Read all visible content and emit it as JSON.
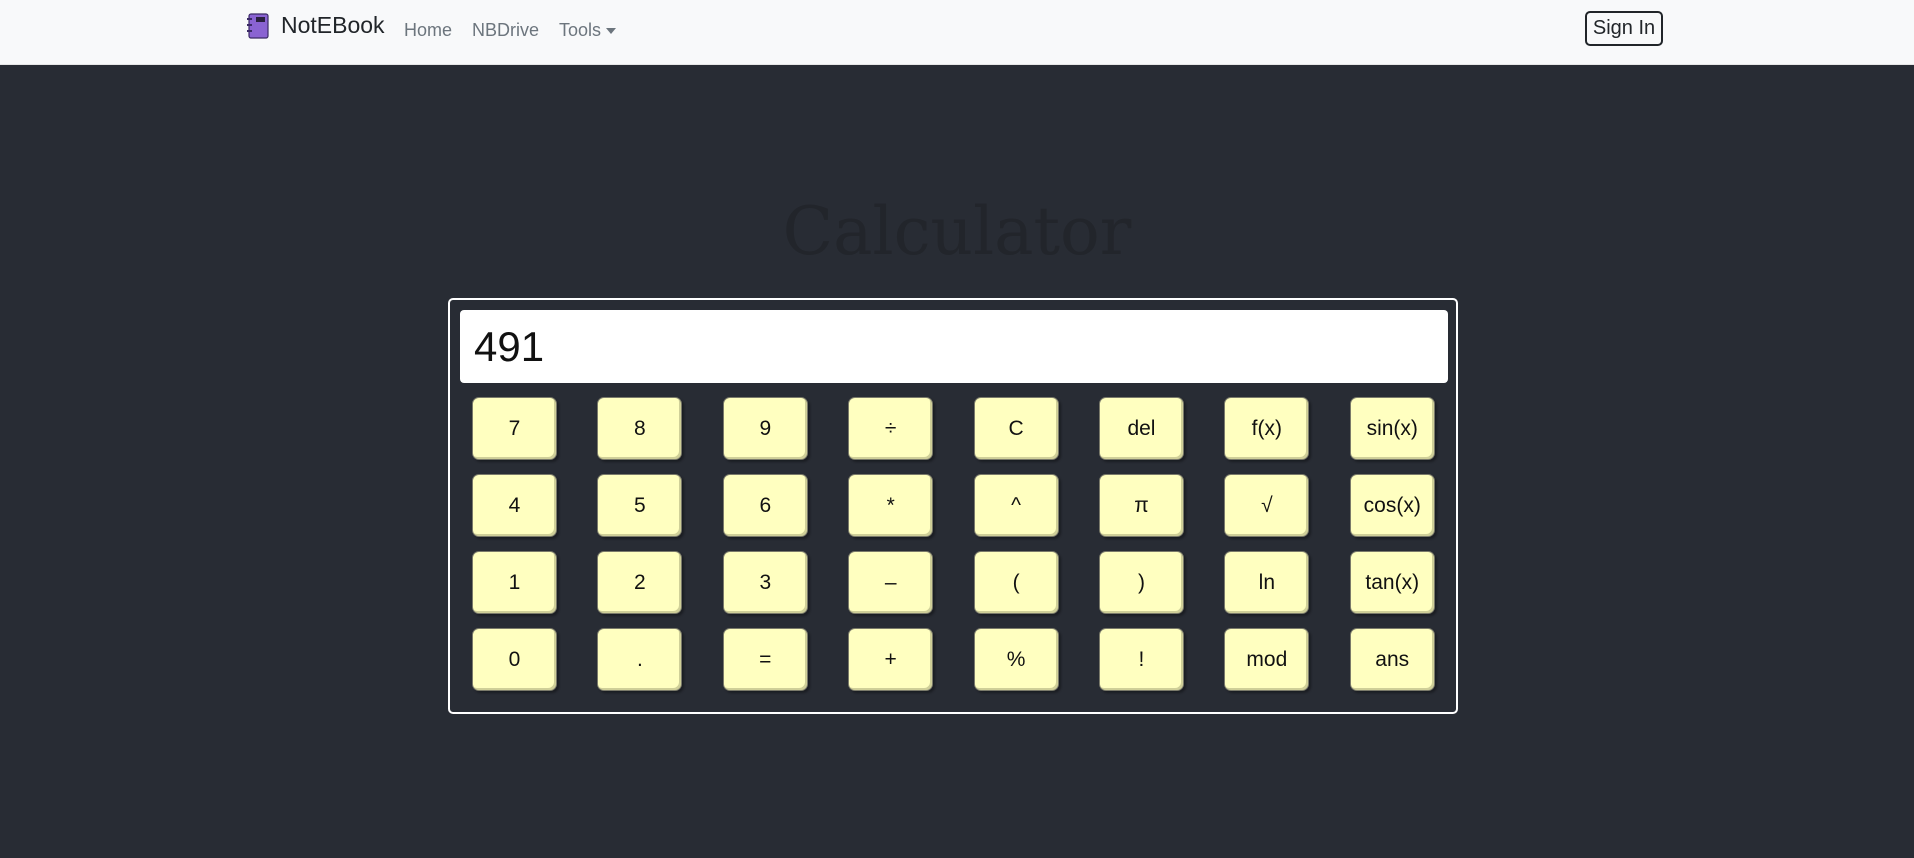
{
  "navbar": {
    "brand": "NotEBook",
    "links": [
      "Home",
      "NBDrive",
      "Tools"
    ],
    "sign_in": "Sign In"
  },
  "page": {
    "title": "Calculator"
  },
  "calculator": {
    "display_value": "491",
    "keys": [
      "7",
      "8",
      "9",
      "÷",
      "C",
      "del",
      "f(x)",
      "sin(x)",
      "4",
      "5",
      "6",
      "*",
      "^",
      "π",
      "√",
      "cos(x)",
      "1",
      "2",
      "3",
      "–",
      "(",
      ")",
      "ln",
      "tan(x)",
      "0",
      ".",
      "=",
      "+",
      "%",
      "!",
      "mod",
      "ans"
    ]
  },
  "colors": {
    "navbar_bg": "#f8f9fa",
    "page_bg": "#282c34",
    "key_bg": "#ffffc0",
    "brand_icon": "#8a63d2"
  },
  "icons": {
    "brand": "notebook-icon",
    "tools": "caret-down-icon"
  }
}
